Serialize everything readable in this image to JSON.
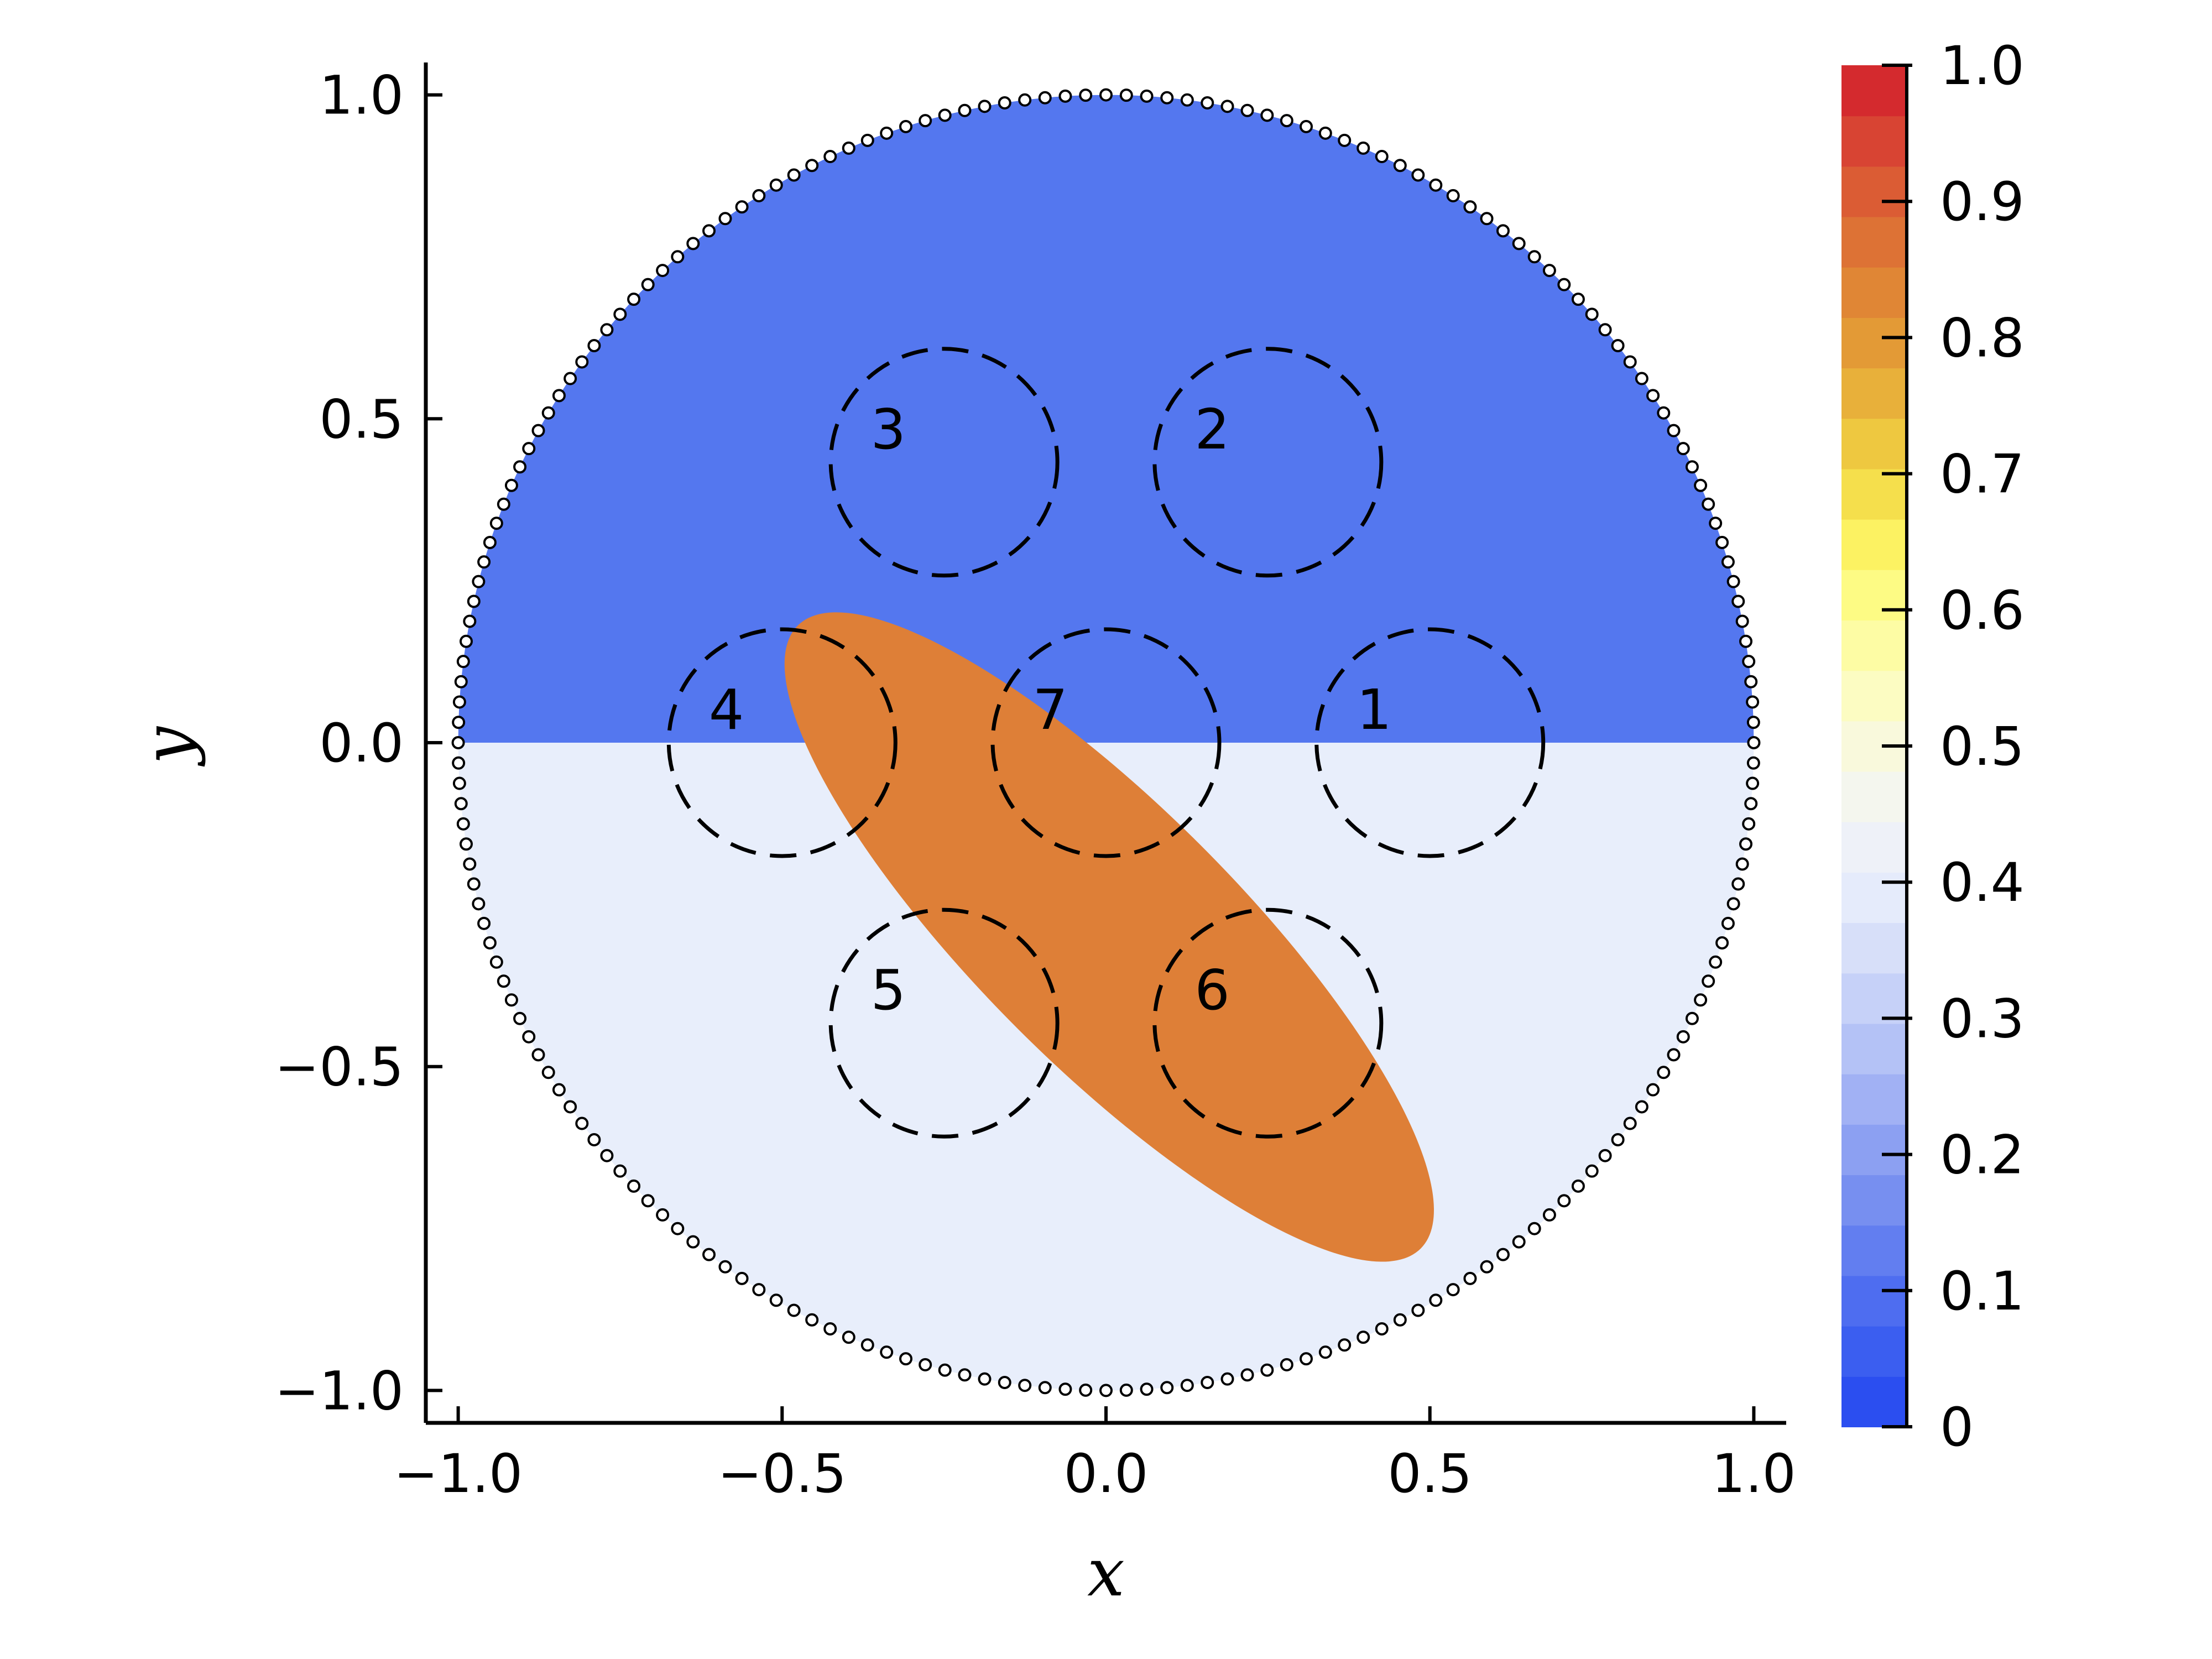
{
  "chart_data": {
    "type": "heatmap",
    "title": "",
    "xlabel": "x",
    "ylabel": "y",
    "xlim": [
      -1.05,
      1.05
    ],
    "ylim": [
      -1.05,
      1.05
    ],
    "xticks": [
      -1.0,
      -0.5,
      0.0,
      0.5,
      1.0
    ],
    "xtick_labels": [
      "−1.0",
      "−0.5",
      "0.0",
      "0.5",
      "1.0"
    ],
    "yticks": [
      -1.0,
      -0.5,
      0.0,
      0.5,
      1.0
    ],
    "ytick_labels": [
      "−1.0",
      "−0.5",
      "0.0",
      "0.5",
      "1.0"
    ],
    "grid": false,
    "domain": {
      "shape": "disk",
      "center": [
        0,
        0
      ],
      "radius": 1.0,
      "boundary_points": 200
    },
    "regions": [
      {
        "name": "upper half",
        "value": 0.1,
        "color": "#5477ef",
        "y_min": 0.0
      },
      {
        "name": "lower half",
        "value": 0.42,
        "color": "#e8eefb",
        "y_max": 0.0
      },
      {
        "name": "inclusion",
        "value": 0.92,
        "color": "#de7f37",
        "shape": "ellipse",
        "center": [
          0.005,
          -0.3
        ],
        "semi_axes": [
          0.68,
          0.2
        ],
        "angle_deg": -45
      }
    ],
    "circles": [
      {
        "label": "1",
        "center": [
          0.5,
          0.0
        ],
        "radius": 0.175
      },
      {
        "label": "2",
        "center": [
          0.25,
          0.433
        ],
        "radius": 0.175
      },
      {
        "label": "3",
        "center": [
          -0.25,
          0.433
        ],
        "radius": 0.175
      },
      {
        "label": "4",
        "center": [
          -0.5,
          0.0
        ],
        "radius": 0.175
      },
      {
        "label": "5",
        "center": [
          -0.25,
          -0.433
        ],
        "radius": 0.175
      },
      {
        "label": "6",
        "center": [
          0.25,
          -0.433
        ],
        "radius": 0.175
      },
      {
        "label": "7",
        "center": [
          0.0,
          0.0
        ],
        "radius": 0.175
      }
    ],
    "colorbar": {
      "range": [
        0,
        1
      ],
      "ticks": [
        0,
        0.1,
        0.2,
        0.3,
        0.4,
        0.5,
        0.6,
        0.7,
        0.8,
        0.9,
        1.0
      ],
      "tick_labels": [
        "0",
        "0.1",
        "0.2",
        "0.3",
        "0.4",
        "0.5",
        "0.6",
        "0.7",
        "0.8",
        "0.9",
        "1.0"
      ],
      "colors": [
        "#2b4ef0",
        "#3b5ef0",
        "#4e6df0",
        "#627ef0",
        "#778ff0",
        "#8ca0f2",
        "#a1b1f4",
        "#b4c2f6",
        "#c6d1f8",
        "#d7dff9",
        "#e5ebfb",
        "#eef1f8",
        "#f4f6ee",
        "#f9f9dc",
        "#fcfcc2",
        "#fdfca4",
        "#fdfb84",
        "#fcf262",
        "#f5df4c",
        "#eec840",
        "#e8b03a",
        "#e39a36",
        "#e08635",
        "#dd7235",
        "#db5c34",
        "#d84433",
        "#d42a2e"
      ]
    }
  }
}
